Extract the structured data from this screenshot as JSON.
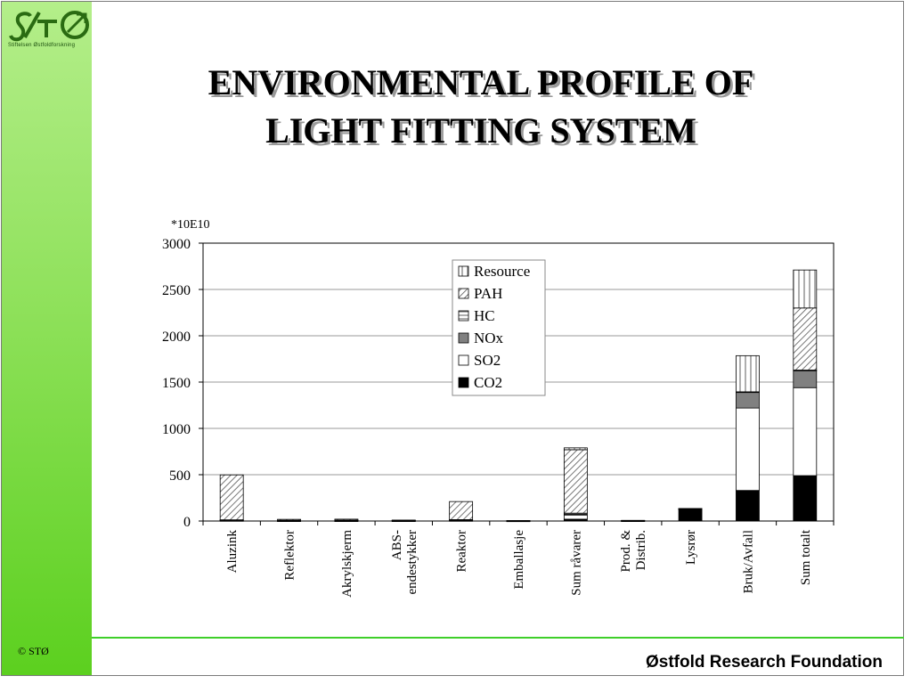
{
  "brand": {
    "logo_text": "StØ",
    "logo_subtitle": "Stiftelsen Østfoldforskning",
    "copyright": "© STØ",
    "footer": "Østfold Research Foundation",
    "accent_color": "#5cd01f"
  },
  "slide": {
    "title_line1": "ENVIRONMENTAL PROFILE OF",
    "title_line2": "LIGHT FITTING SYSTEM"
  },
  "chart_data": {
    "type": "bar",
    "stacked": true,
    "unit_label": "*10E10",
    "ylim": [
      0,
      3000
    ],
    "yticks": [
      0,
      500,
      1000,
      1500,
      2000,
      2500,
      3000
    ],
    "grid": true,
    "legend_position": "top-center",
    "categories": [
      [
        "Aluzink"
      ],
      [
        "Reflektor"
      ],
      [
        "Akrylskjerm"
      ],
      [
        "ABS-",
        "endestykker"
      ],
      [
        "Reaktor"
      ],
      [
        "Emballasje"
      ],
      [
        "Sum råvarer"
      ],
      [
        "Prod. &",
        "Distrib."
      ],
      [
        "Lysrør"
      ],
      [
        "Bruk/Avfall"
      ],
      [
        "Sum totalt"
      ]
    ],
    "series": [
      {
        "name": "CO2",
        "pattern": "solid-black",
        "values": [
          5,
          2,
          2,
          2,
          5,
          1,
          20,
          2,
          130,
          330,
          490
        ]
      },
      {
        "name": "SO2",
        "pattern": "white",
        "values": [
          3,
          2,
          3,
          2,
          4,
          1,
          45,
          2,
          2,
          890,
          950
        ]
      },
      {
        "name": "NOx",
        "pattern": "gray",
        "values": [
          2,
          2,
          2,
          2,
          3,
          1,
          10,
          1,
          1,
          170,
          180
        ]
      },
      {
        "name": "HC",
        "pattern": "horizontal-lines",
        "values": [
          3,
          2,
          3,
          2,
          3,
          1,
          10,
          1,
          1,
          5,
          10
        ]
      },
      {
        "name": "PAH",
        "pattern": "diagonal-hatch",
        "values": [
          485,
          10,
          10,
          2,
          195,
          1,
          685,
          1,
          1,
          0,
          670
        ]
      },
      {
        "name": "Resource",
        "pattern": "vertical-lines",
        "values": [
          0,
          0,
          0,
          0,
          0,
          0,
          20,
          0,
          0,
          390,
          410
        ]
      }
    ]
  }
}
